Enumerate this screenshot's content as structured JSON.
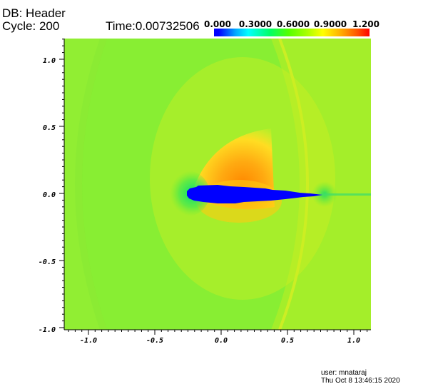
{
  "header": {
    "db": "DB: Header",
    "cycle": "Cycle: 200",
    "time": "Time:0.00732506"
  },
  "colorbar": {
    "labels": [
      "0.000",
      "0.3000",
      "0.6000",
      "0.9000",
      "1.200"
    ],
    "range": [
      0.0,
      1.2
    ],
    "colors": [
      "#0000ff",
      "#00ffff",
      "#55ff00",
      "#ffff00",
      "#ff0000"
    ]
  },
  "axes": {
    "x_ticks": [
      "-1.0",
      "-0.5",
      "0.0",
      "0.5",
      "1.0"
    ],
    "y_ticks": [
      "1.0",
      "0.5",
      "0.0",
      "-0.5",
      "-1.0"
    ],
    "xlim": [
      -1.15,
      1.15
    ],
    "ylim": [
      -1.0,
      1.15
    ]
  },
  "colors": {
    "background_field": "#88ee33",
    "airfoil": "#0000ff"
  },
  "footer": {
    "user": "user: mnataraj",
    "date": "Thu Oct  8 13:46:15 2020"
  }
}
